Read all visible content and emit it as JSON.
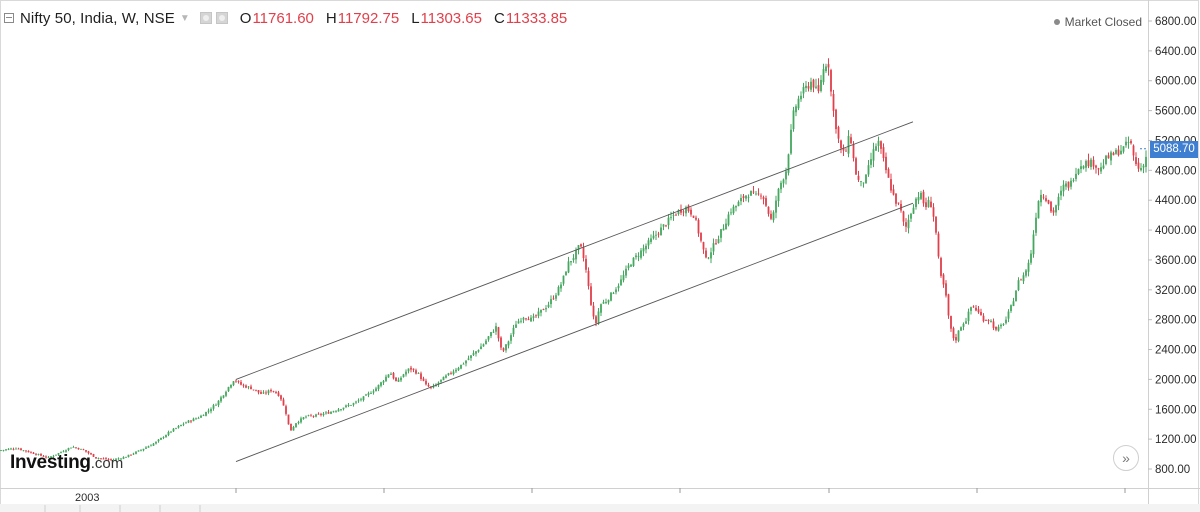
{
  "header": {
    "symbol": "Nifty 50, India, W, NSE",
    "open_label": "O",
    "open_value": "11761.60",
    "high_label": "H",
    "high_value": "11792.75",
    "low_label": "L",
    "low_value": "11303.65",
    "close_label": "C",
    "close_value": "11333.85",
    "market_status": "Market Closed"
  },
  "price_tag": "5088.70",
  "logo": {
    "main": "Investing",
    "sub": ".com"
  },
  "colors": {
    "up": "#43a85e",
    "down": "#e0404b",
    "last_price_tag": "#3f7fd1",
    "trendline": "#555555"
  },
  "icons": [
    "collapse-icon",
    "dropdown-caret-icon",
    "settings-icon",
    "maximize-icon",
    "market-closed-dot-icon",
    "scroll-right-icon"
  ],
  "chart_data": {
    "type": "candlestick",
    "y_axis": {
      "ticks": [
        800,
        1200,
        1600,
        2000,
        2400,
        2800,
        3200,
        3600,
        4000,
        4400,
        4800,
        5200,
        5600,
        6000,
        6400,
        6800
      ],
      "tick_labels": [
        "800.00",
        "1200.00",
        "1600.00",
        "2000.00",
        "2400.00",
        "2800.00",
        "3200.00",
        "3600.00",
        "4000.00",
        "4400.00",
        "4800.00",
        "5200.00",
        "5600.00",
        "6000.00",
        "6400.00",
        "6800.00"
      ],
      "ylim": [
        500,
        6900
      ]
    },
    "x_axis": {
      "labels": [
        "2003"
      ]
    },
    "path": [
      [
        0,
        1050
      ],
      [
        16,
        1080
      ],
      [
        36,
        1000
      ],
      [
        48,
        950
      ],
      [
        60,
        1020
      ],
      [
        72,
        1100
      ],
      [
        84,
        1050
      ],
      [
        96,
        950
      ],
      [
        112,
        920
      ],
      [
        125,
        960
      ],
      [
        140,
        1050
      ],
      [
        155,
        1150
      ],
      [
        170,
        1300
      ],
      [
        185,
        1420
      ],
      [
        200,
        1500
      ],
      [
        210,
        1600
      ],
      [
        218,
        1700
      ],
      [
        226,
        1850
      ],
      [
        234,
        2000
      ],
      [
        242,
        1920
      ],
      [
        252,
        1880
      ],
      [
        262,
        1800
      ],
      [
        272,
        1860
      ],
      [
        280,
        1780
      ],
      [
        286,
        1550
      ],
      [
        290,
        1300
      ],
      [
        296,
        1420
      ],
      [
        305,
        1500
      ],
      [
        318,
        1520
      ],
      [
        330,
        1560
      ],
      [
        342,
        1620
      ],
      [
        354,
        1680
      ],
      [
        364,
        1760
      ],
      [
        376,
        1880
      ],
      [
        384,
        2000
      ],
      [
        390,
        2100
      ],
      [
        397,
        1950
      ],
      [
        404,
        2080
      ],
      [
        410,
        2150
      ],
      [
        418,
        2080
      ],
      [
        426,
        1920
      ],
      [
        432,
        1880
      ],
      [
        442,
        2000
      ],
      [
        452,
        2100
      ],
      [
        462,
        2200
      ],
      [
        470,
        2300
      ],
      [
        478,
        2400
      ],
      [
        484,
        2480
      ],
      [
        490,
        2600
      ],
      [
        496,
        2700
      ],
      [
        502,
        2350
      ],
      [
        508,
        2500
      ],
      [
        516,
        2750
      ],
      [
        524,
        2850
      ],
      [
        532,
        2800
      ],
      [
        540,
        2900
      ],
      [
        548,
        3000
      ],
      [
        556,
        3150
      ],
      [
        562,
        3300
      ],
      [
        568,
        3550
      ],
      [
        574,
        3650
      ],
      [
        580,
        3800
      ],
      [
        585,
        3550
      ],
      [
        590,
        3100
      ],
      [
        595,
        2700
      ],
      [
        600,
        3000
      ],
      [
        606,
        3050
      ],
      [
        612,
        3150
      ],
      [
        620,
        3300
      ],
      [
        630,
        3550
      ],
      [
        640,
        3700
      ],
      [
        650,
        3850
      ],
      [
        660,
        4000
      ],
      [
        670,
        4150
      ],
      [
        678,
        4250
      ],
      [
        686,
        4300
      ],
      [
        694,
        4200
      ],
      [
        700,
        3900
      ],
      [
        706,
        3600
      ],
      [
        714,
        3800
      ],
      [
        722,
        4000
      ],
      [
        730,
        4250
      ],
      [
        738,
        4350
      ],
      [
        744,
        4450
      ],
      [
        750,
        4500
      ],
      [
        756,
        4450
      ],
      [
        762,
        4500
      ],
      [
        768,
        4250
      ],
      [
        772,
        4100
      ],
      [
        776,
        4400
      ],
      [
        780,
        4600
      ],
      [
        786,
        4800
      ],
      [
        790,
        5200
      ],
      [
        794,
        5600
      ],
      [
        800,
        5800
      ],
      [
        806,
        5900
      ],
      [
        812,
        6000
      ],
      [
        818,
        5800
      ],
      [
        822,
        6100
      ],
      [
        828,
        6300
      ],
      [
        832,
        5700
      ],
      [
        836,
        5400
      ],
      [
        840,
        5100
      ],
      [
        845,
        5000
      ],
      [
        850,
        5300
      ],
      [
        855,
        4800
      ],
      [
        860,
        4600
      ],
      [
        866,
        4700
      ],
      [
        872,
        5000
      ],
      [
        878,
        5200
      ],
      [
        882,
        5000
      ],
      [
        886,
        4800
      ],
      [
        890,
        4600
      ],
      [
        895,
        4400
      ],
      [
        900,
        4300
      ],
      [
        905,
        4000
      ],
      [
        910,
        4200
      ],
      [
        915,
        4400
      ],
      [
        920,
        4500
      ],
      [
        925,
        4300
      ],
      [
        930,
        4400
      ],
      [
        935,
        4100
      ],
      [
        940,
        3400
      ],
      [
        945,
        3200
      ],
      [
        950,
        2700
      ],
      [
        955,
        2500
      ],
      [
        960,
        2700
      ],
      [
        966,
        2800
      ],
      [
        972,
        3000
      ],
      [
        978,
        2900
      ],
      [
        984,
        2800
      ],
      [
        990,
        2800
      ],
      [
        996,
        2650
      ],
      [
        1000,
        2700
      ],
      [
        1006,
        2800
      ],
      [
        1012,
        3000
      ],
      [
        1018,
        3300
      ],
      [
        1024,
        3400
      ],
      [
        1030,
        3600
      ],
      [
        1034,
        4000
      ],
      [
        1038,
        4400
      ],
      [
        1042,
        4500
      ],
      [
        1048,
        4400
      ],
      [
        1052,
        4200
      ],
      [
        1058,
        4400
      ],
      [
        1064,
        4600
      ],
      [
        1070,
        4600
      ],
      [
        1076,
        4800
      ],
      [
        1082,
        4900
      ],
      [
        1088,
        4900
      ],
      [
        1094,
        4900
      ],
      [
        1100,
        4800
      ],
      [
        1106,
        4950
      ],
      [
        1112,
        5000
      ],
      [
        1118,
        5050
      ],
      [
        1124,
        5100
      ],
      [
        1130,
        5200
      ],
      [
        1135,
        4900
      ],
      [
        1140,
        4800
      ],
      [
        1145,
        4950
      ],
      [
        1150,
        5088.7
      ]
    ],
    "trendlines": [
      {
        "from": [
          236,
          2000
        ],
        "to": [
          913,
          5450
        ]
      },
      {
        "from": [
          236,
          900
        ],
        "to": [
          913,
          4360
        ]
      }
    ]
  }
}
